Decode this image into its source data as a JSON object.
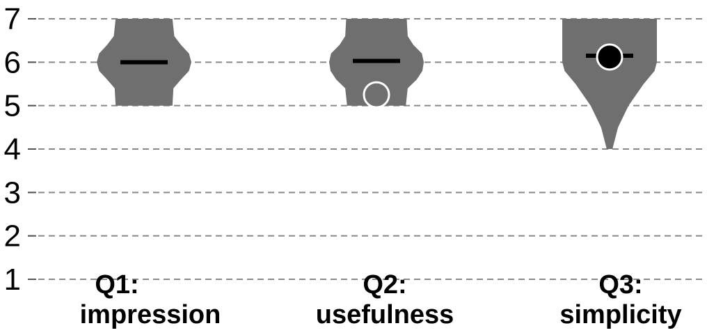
{
  "chart_data": {
    "type": "violin",
    "title": "",
    "xlabel": "",
    "ylabel": "",
    "ylim": [
      1,
      7
    ],
    "yticks": [
      1,
      2,
      3,
      4,
      5,
      6,
      7
    ],
    "grid": "horizontal-dashed",
    "legend": "none",
    "categories": [
      {
        "line1": "Q1:",
        "line2": "impression"
      },
      {
        "line1": "Q2:",
        "line2": "usefulness"
      },
      {
        "line1": "Q3:",
        "line2": "simplicity"
      }
    ],
    "violins": [
      {
        "min": 5,
        "max": 7,
        "median": 6,
        "marker": null,
        "profile": [
          [
            5.0,
            0.6
          ],
          [
            5.4,
            0.62
          ],
          [
            5.6,
            0.78
          ],
          [
            5.8,
            0.95
          ],
          [
            6.0,
            1.0
          ],
          [
            6.2,
            0.95
          ],
          [
            6.4,
            0.78
          ],
          [
            6.6,
            0.64
          ],
          [
            7.0,
            0.6
          ]
        ]
      },
      {
        "min": 5,
        "max": 7,
        "median": 6.03,
        "marker": {
          "value": 5.25,
          "style": "hollow"
        },
        "profile": [
          [
            5.0,
            0.62
          ],
          [
            5.4,
            0.66
          ],
          [
            5.6,
            0.85
          ],
          [
            5.8,
            0.97
          ],
          [
            6.0,
            1.0
          ],
          [
            6.2,
            0.96
          ],
          [
            6.4,
            0.78
          ],
          [
            6.6,
            0.66
          ],
          [
            7.0,
            0.64
          ]
        ]
      },
      {
        "min": 4,
        "max": 7,
        "median": 6.15,
        "marker": {
          "value": 6.12,
          "style": "filled"
        },
        "profile": [
          [
            4.0,
            0.06
          ],
          [
            4.5,
            0.18
          ],
          [
            5.0,
            0.4
          ],
          [
            5.5,
            0.72
          ],
          [
            5.8,
            0.95
          ],
          [
            6.0,
            1.0
          ],
          [
            6.4,
            1.0
          ],
          [
            7.0,
            1.0
          ]
        ]
      }
    ],
    "colors": {
      "violin": "#6f6f6f",
      "median": "#000000",
      "marker_hollow": "#6f6f6f",
      "marker_filled": "#000000",
      "marker_stroke": "#ffffff",
      "grid": "#888888"
    }
  }
}
